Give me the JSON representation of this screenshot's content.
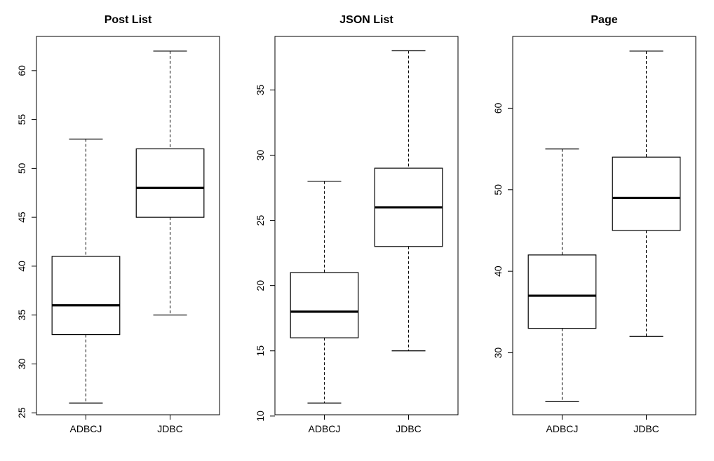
{
  "chart_data": [
    {
      "type": "boxplot",
      "title": "Post List",
      "categories": [
        "ADBCJ",
        "JDBC"
      ],
      "boxes": [
        {
          "name": "ADBCJ",
          "min": 26,
          "q1": 33,
          "median": 36,
          "q3": 41,
          "max": 53
        },
        {
          "name": "JDBC",
          "min": 35,
          "q1": 45,
          "median": 48,
          "q3": 52,
          "max": 62
        }
      ],
      "ylim": [
        24.8,
        63.5
      ],
      "yticks": [
        25,
        30,
        35,
        40,
        45,
        50,
        55,
        60
      ],
      "grid": false
    },
    {
      "type": "boxplot",
      "title": "JSON List",
      "categories": [
        "ADBCJ",
        "JDBC"
      ],
      "boxes": [
        {
          "name": "ADBCJ",
          "min": 11,
          "q1": 16,
          "median": 18,
          "q3": 21,
          "max": 28
        },
        {
          "name": "JDBC",
          "min": 15,
          "q1": 23,
          "median": 26,
          "q3": 29,
          "max": 38
        }
      ],
      "ylim": [
        10.1,
        39.1
      ],
      "yticks": [
        10,
        15,
        20,
        25,
        30,
        35
      ],
      "grid": false
    },
    {
      "type": "boxplot",
      "title": "Page",
      "categories": [
        "ADBCJ",
        "JDBC"
      ],
      "boxes": [
        {
          "name": "ADBCJ",
          "min": 24,
          "q1": 33,
          "median": 37,
          "q3": 42,
          "max": 55
        },
        {
          "name": "JDBC",
          "min": 32,
          "q1": 45,
          "median": 49,
          "q3": 54,
          "max": 67
        }
      ],
      "ylim": [
        22.4,
        68.8
      ],
      "yticks": [
        30,
        40,
        50,
        60
      ],
      "grid": false
    }
  ]
}
